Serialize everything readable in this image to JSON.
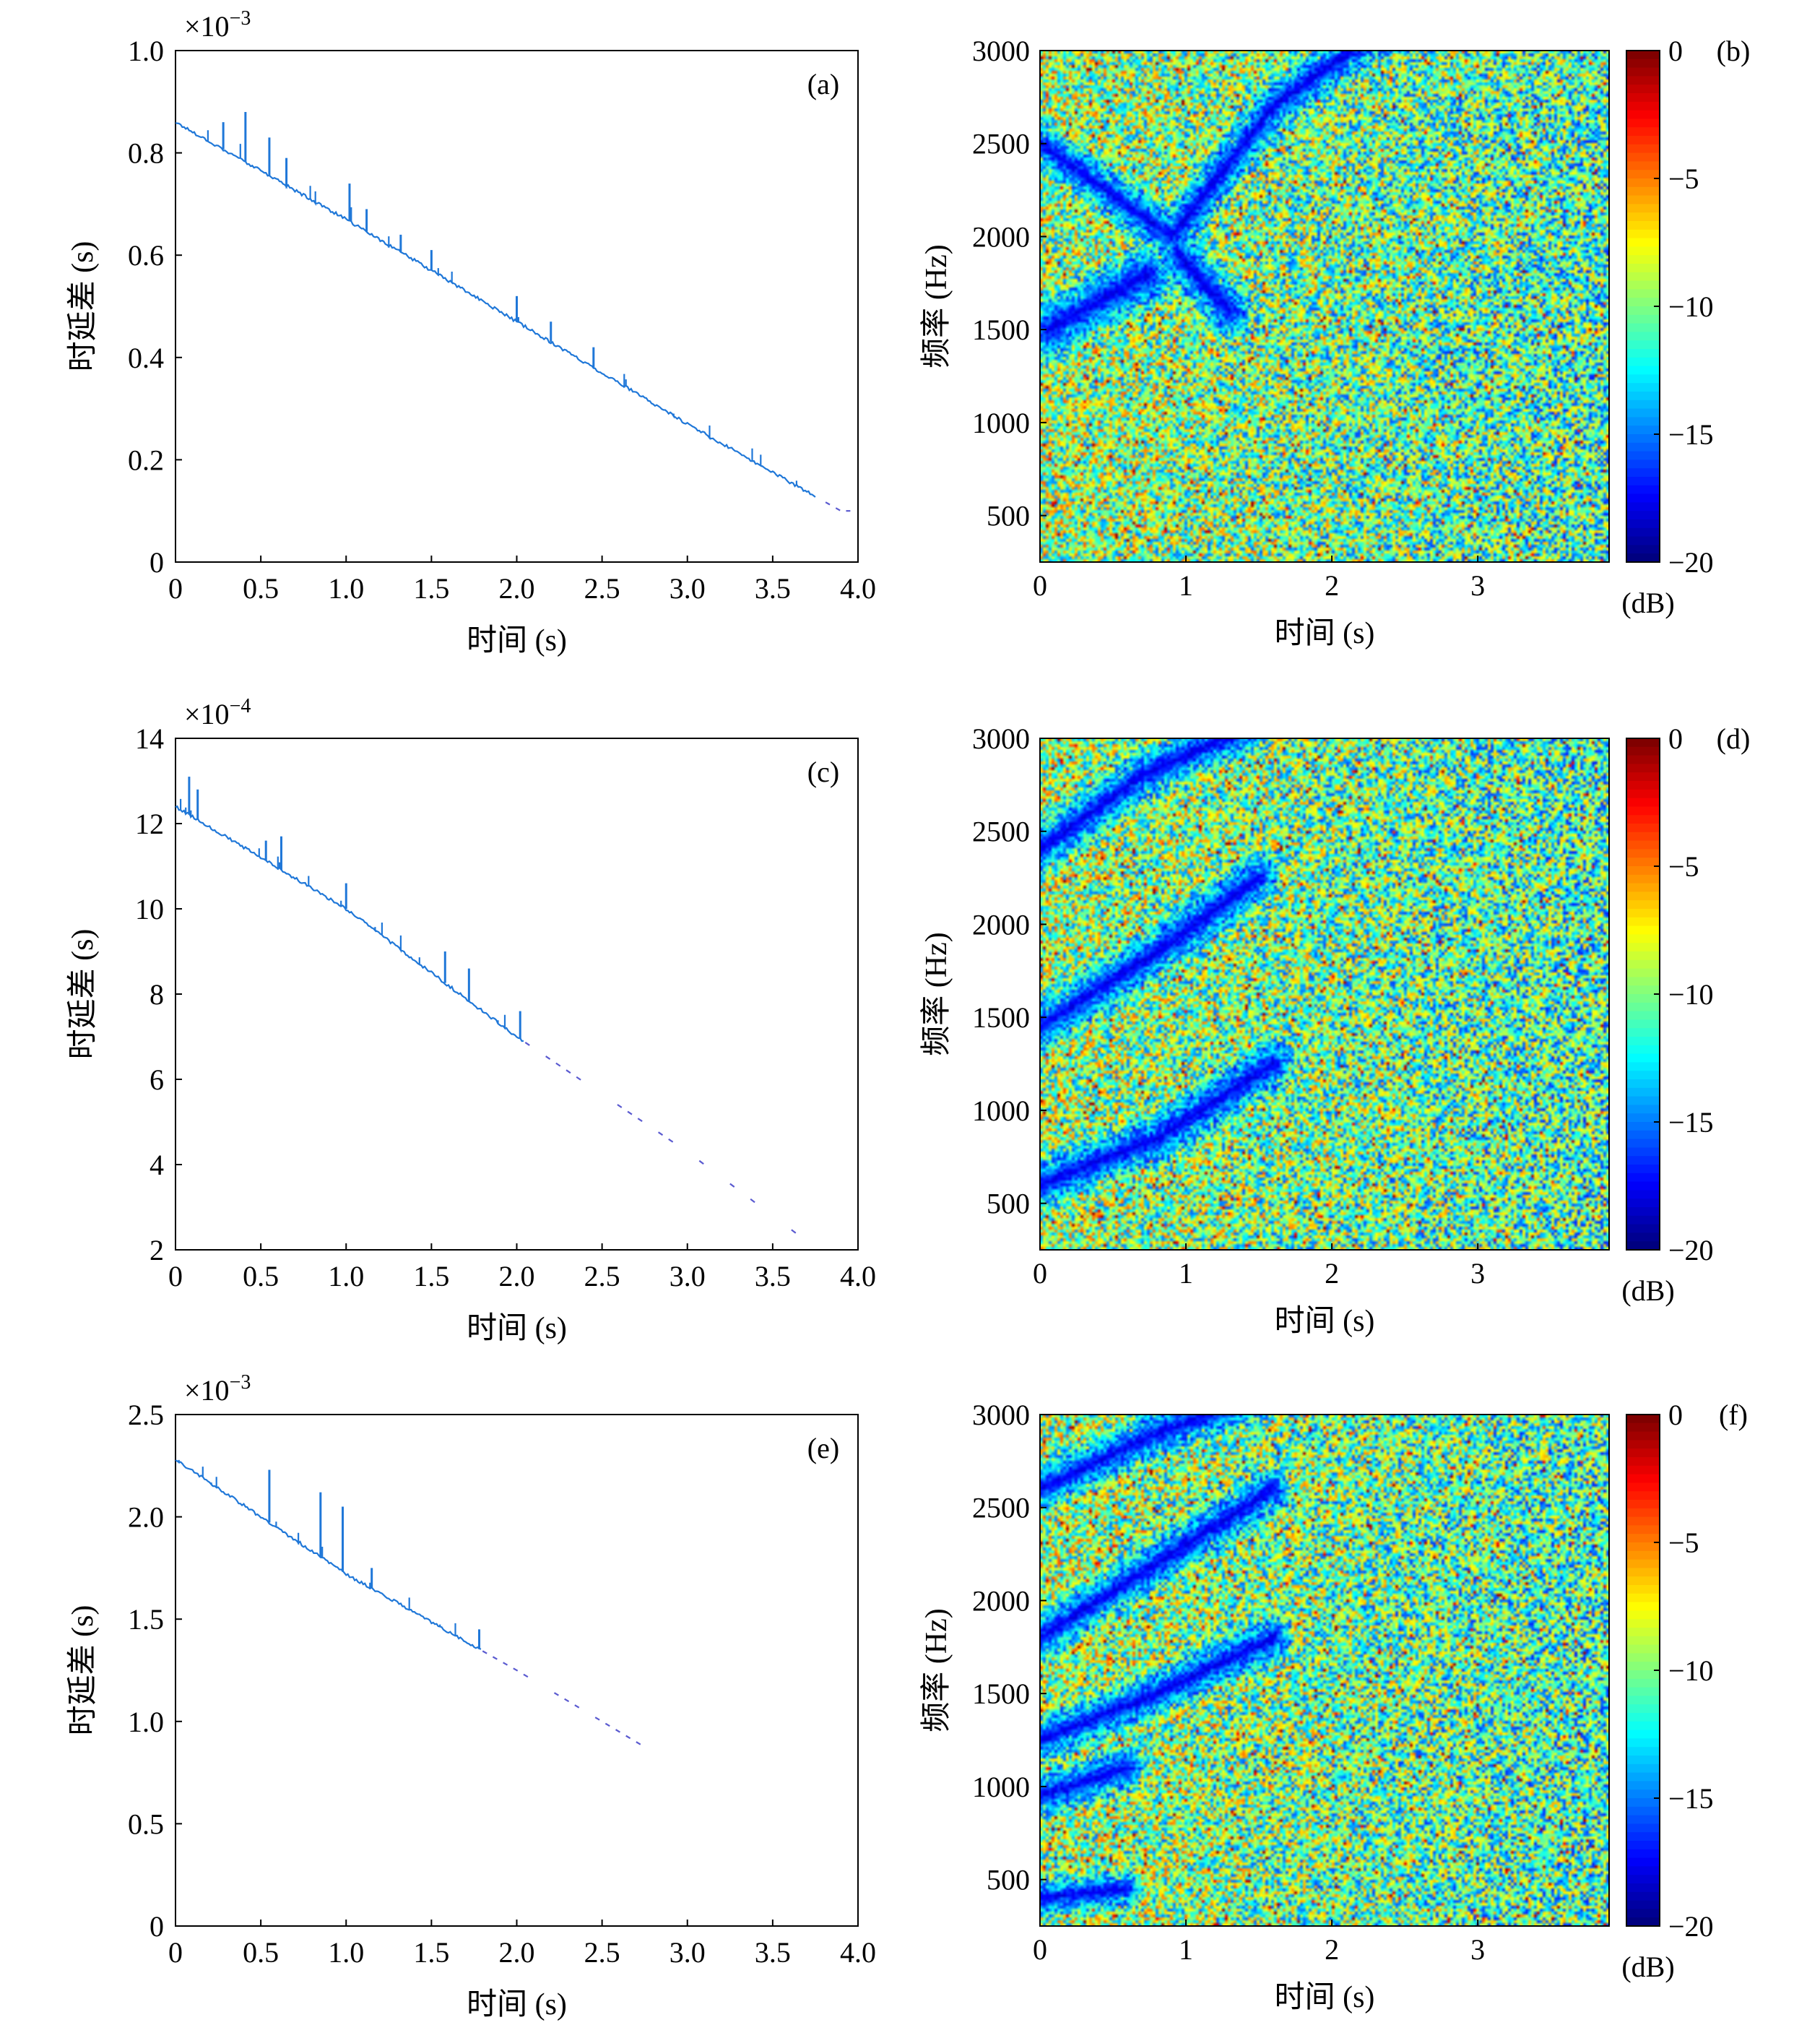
{
  "colors": {
    "line": "#1f77d8",
    "axis": "#000000",
    "colormap": "jet"
  },
  "panels": [
    {
      "id": "a",
      "label": "(a)",
      "exponent": "×10",
      "exponent_power": "−3",
      "xlabel": "时间 (s)",
      "ylabel": "时延差 (s)",
      "xticks": [
        "0",
        "0.5",
        "1.0",
        "1.5",
        "2.0",
        "2.5",
        "3.0",
        "3.5",
        "4.0"
      ],
      "yticks": [
        "0",
        "0.2",
        "0.4",
        "0.6",
        "0.8",
        "1.0"
      ]
    },
    {
      "id": "b",
      "label": "(b)",
      "xlabel": "时间 (s)",
      "ylabel": "频率 (Hz)",
      "xticks": [
        "0",
        "1",
        "2",
        "3"
      ],
      "yticks": [
        "500",
        "1000",
        "1500",
        "2000",
        "2500",
        "3000"
      ],
      "cbticks": [
        "0",
        "−5",
        "−10",
        "−15",
        "−20"
      ],
      "cbunit": "(dB)"
    },
    {
      "id": "c",
      "label": "(c)",
      "exponent": "×10",
      "exponent_power": "−4",
      "xlabel": "时间 (s)",
      "ylabel": "时延差 (s)",
      "xticks": [
        "0",
        "0.5",
        "1.0",
        "1.5",
        "2.0",
        "2.5",
        "3.0",
        "3.5",
        "4.0"
      ],
      "yticks": [
        "2",
        "4",
        "6",
        "8",
        "10",
        "12",
        "14"
      ]
    },
    {
      "id": "d",
      "label": "(d)",
      "xlabel": "时间 (s)",
      "ylabel": "频率 (Hz)",
      "xticks": [
        "0",
        "1",
        "2",
        "3"
      ],
      "yticks": [
        "500",
        "1000",
        "1500",
        "2000",
        "2500",
        "3000"
      ],
      "cbticks": [
        "0",
        "−5",
        "−10",
        "−15",
        "−20"
      ],
      "cbunit": "(dB)"
    },
    {
      "id": "e",
      "label": "(e)",
      "exponent": "×10",
      "exponent_power": "−3",
      "xlabel": "时间 (s)",
      "ylabel": "时延差 (s)",
      "xticks": [
        "0",
        "0.5",
        "1.0",
        "1.5",
        "2.0",
        "2.5",
        "3.0",
        "3.5",
        "4.0"
      ],
      "yticks": [
        "0",
        "0.5",
        "1.0",
        "1.5",
        "2.0",
        "2.5"
      ]
    },
    {
      "id": "f",
      "label": "(f)",
      "xlabel": "时间 (s)",
      "ylabel": "频率 (Hz)",
      "xticks": [
        "0",
        "1",
        "2",
        "3"
      ],
      "yticks": [
        "500",
        "1000",
        "1500",
        "2000",
        "2500",
        "3000"
      ],
      "cbticks": [
        "0",
        "−5",
        "−10",
        "−15",
        "−20"
      ],
      "cbunit": "(dB)"
    }
  ],
  "chart_data": [
    {
      "panel": "a",
      "type": "line",
      "xlim": [
        0,
        4
      ],
      "ylim": [
        0,
        1.0
      ],
      "y_scale": "1e-3",
      "trend": {
        "x": [
          0,
          1,
          2,
          3,
          3.9
        ],
        "y": [
          0.86,
          0.67,
          0.47,
          0.27,
          0.1
        ]
      },
      "spikes": [
        {
          "x": 0.28,
          "y": 0.86
        },
        {
          "x": 0.41,
          "y": 0.88
        },
        {
          "x": 0.55,
          "y": 0.83
        },
        {
          "x": 0.65,
          "y": 0.79
        },
        {
          "x": 1.02,
          "y": 0.74
        },
        {
          "x": 1.12,
          "y": 0.69
        },
        {
          "x": 1.32,
          "y": 0.64
        },
        {
          "x": 1.5,
          "y": 0.61
        },
        {
          "x": 2.0,
          "y": 0.52
        },
        {
          "x": 2.2,
          "y": 0.47
        },
        {
          "x": 2.45,
          "y": 0.42
        }
      ],
      "end": 3.75,
      "dots_to": 4.0
    },
    {
      "panel": "b",
      "type": "heatmap",
      "xlim": [
        0,
        3.9
      ],
      "ylim": [
        250,
        3000
      ],
      "clim": [
        -20,
        0
      ],
      "ridges": [
        {
          "x": [
            0,
            0.9,
            1.6,
            2.4
          ],
          "y": [
            2500,
            2000,
            2700,
            3150
          ],
          "w": 110
        },
        {
          "x": 0.4,
          "y": 1650,
          "w": 150
        },
        {
          "x": [
            0.95,
            1.3
          ],
          "y": [
            1900,
            1600
          ],
          "w": 130
        }
      ]
    },
    {
      "panel": "c",
      "type": "line",
      "xlim": [
        0,
        4
      ],
      "ylim": [
        2,
        14
      ],
      "y_scale": "1e-4",
      "trend": {
        "x": [
          0,
          1,
          2,
          3,
          3.7
        ],
        "y": [
          12.4,
          10.0,
          7.0,
          4.3,
          2.2
        ]
      },
      "spikes": [
        {
          "x": 0.08,
          "y": 13.1
        },
        {
          "x": 0.13,
          "y": 12.8
        },
        {
          "x": 0.53,
          "y": 11.6
        },
        {
          "x": 0.62,
          "y": 11.7
        },
        {
          "x": 1.0,
          "y": 10.6
        },
        {
          "x": 1.58,
          "y": 9.0
        },
        {
          "x": 1.72,
          "y": 8.6
        },
        {
          "x": 2.02,
          "y": 7.6
        }
      ],
      "end": 2.05,
      "dots_to": 3.7
    },
    {
      "panel": "d",
      "type": "heatmap",
      "xlim": [
        0,
        3.9
      ],
      "ylim": [
        250,
        3000
      ],
      "clim": [
        -20,
        0
      ],
      "ridges": [
        {
          "x": [
            0,
            0.7,
            1.4
          ],
          "y": [
            2400,
            2800,
            3050
          ],
          "w": 120
        },
        {
          "x": [
            0,
            0.8,
            1.5
          ],
          "y": [
            1450,
            1850,
            2250
          ],
          "w": 120
        },
        {
          "x": [
            0,
            0.8,
            1.6
          ],
          "y": [
            600,
            850,
            1250
          ],
          "w": 120
        }
      ]
    },
    {
      "panel": "e",
      "type": "line",
      "xlim": [
        0,
        4
      ],
      "ylim": [
        0,
        2.5
      ],
      "y_scale": "1e-3",
      "trend": {
        "x": [
          0,
          1,
          2,
          2.8
        ],
        "y": [
          2.28,
          1.72,
          1.25,
          0.85
        ]
      },
      "spikes": [
        {
          "x": 0.55,
          "y": 2.23
        },
        {
          "x": 0.85,
          "y": 2.12
        },
        {
          "x": 0.98,
          "y": 2.05
        },
        {
          "x": 1.15,
          "y": 1.75
        },
        {
          "x": 1.78,
          "y": 1.45
        }
      ],
      "end": 1.8,
      "dots_to": 2.8
    },
    {
      "panel": "f",
      "type": "heatmap",
      "xlim": [
        0,
        3.9
      ],
      "ylim": [
        250,
        3000
      ],
      "clim": [
        -20,
        0
      ],
      "ridges": [
        {
          "x": [
            0,
            0.8,
            1.5
          ],
          "y": [
            2600,
            2900,
            3100
          ],
          "w": 110
        },
        {
          "x": [
            0,
            0.8,
            1.6
          ],
          "y": [
            1800,
            2200,
            2600
          ],
          "w": 110
        },
        {
          "x": [
            0,
            0.8,
            1.6
          ],
          "y": [
            1250,
            1500,
            1800
          ],
          "w": 110
        },
        {
          "x": [
            0,
            0.6
          ],
          "y": [
            950,
            1100
          ],
          "w": 110
        },
        {
          "x": [
            0,
            0.6
          ],
          "y": [
            400,
            450
          ],
          "w": 90
        }
      ]
    }
  ]
}
